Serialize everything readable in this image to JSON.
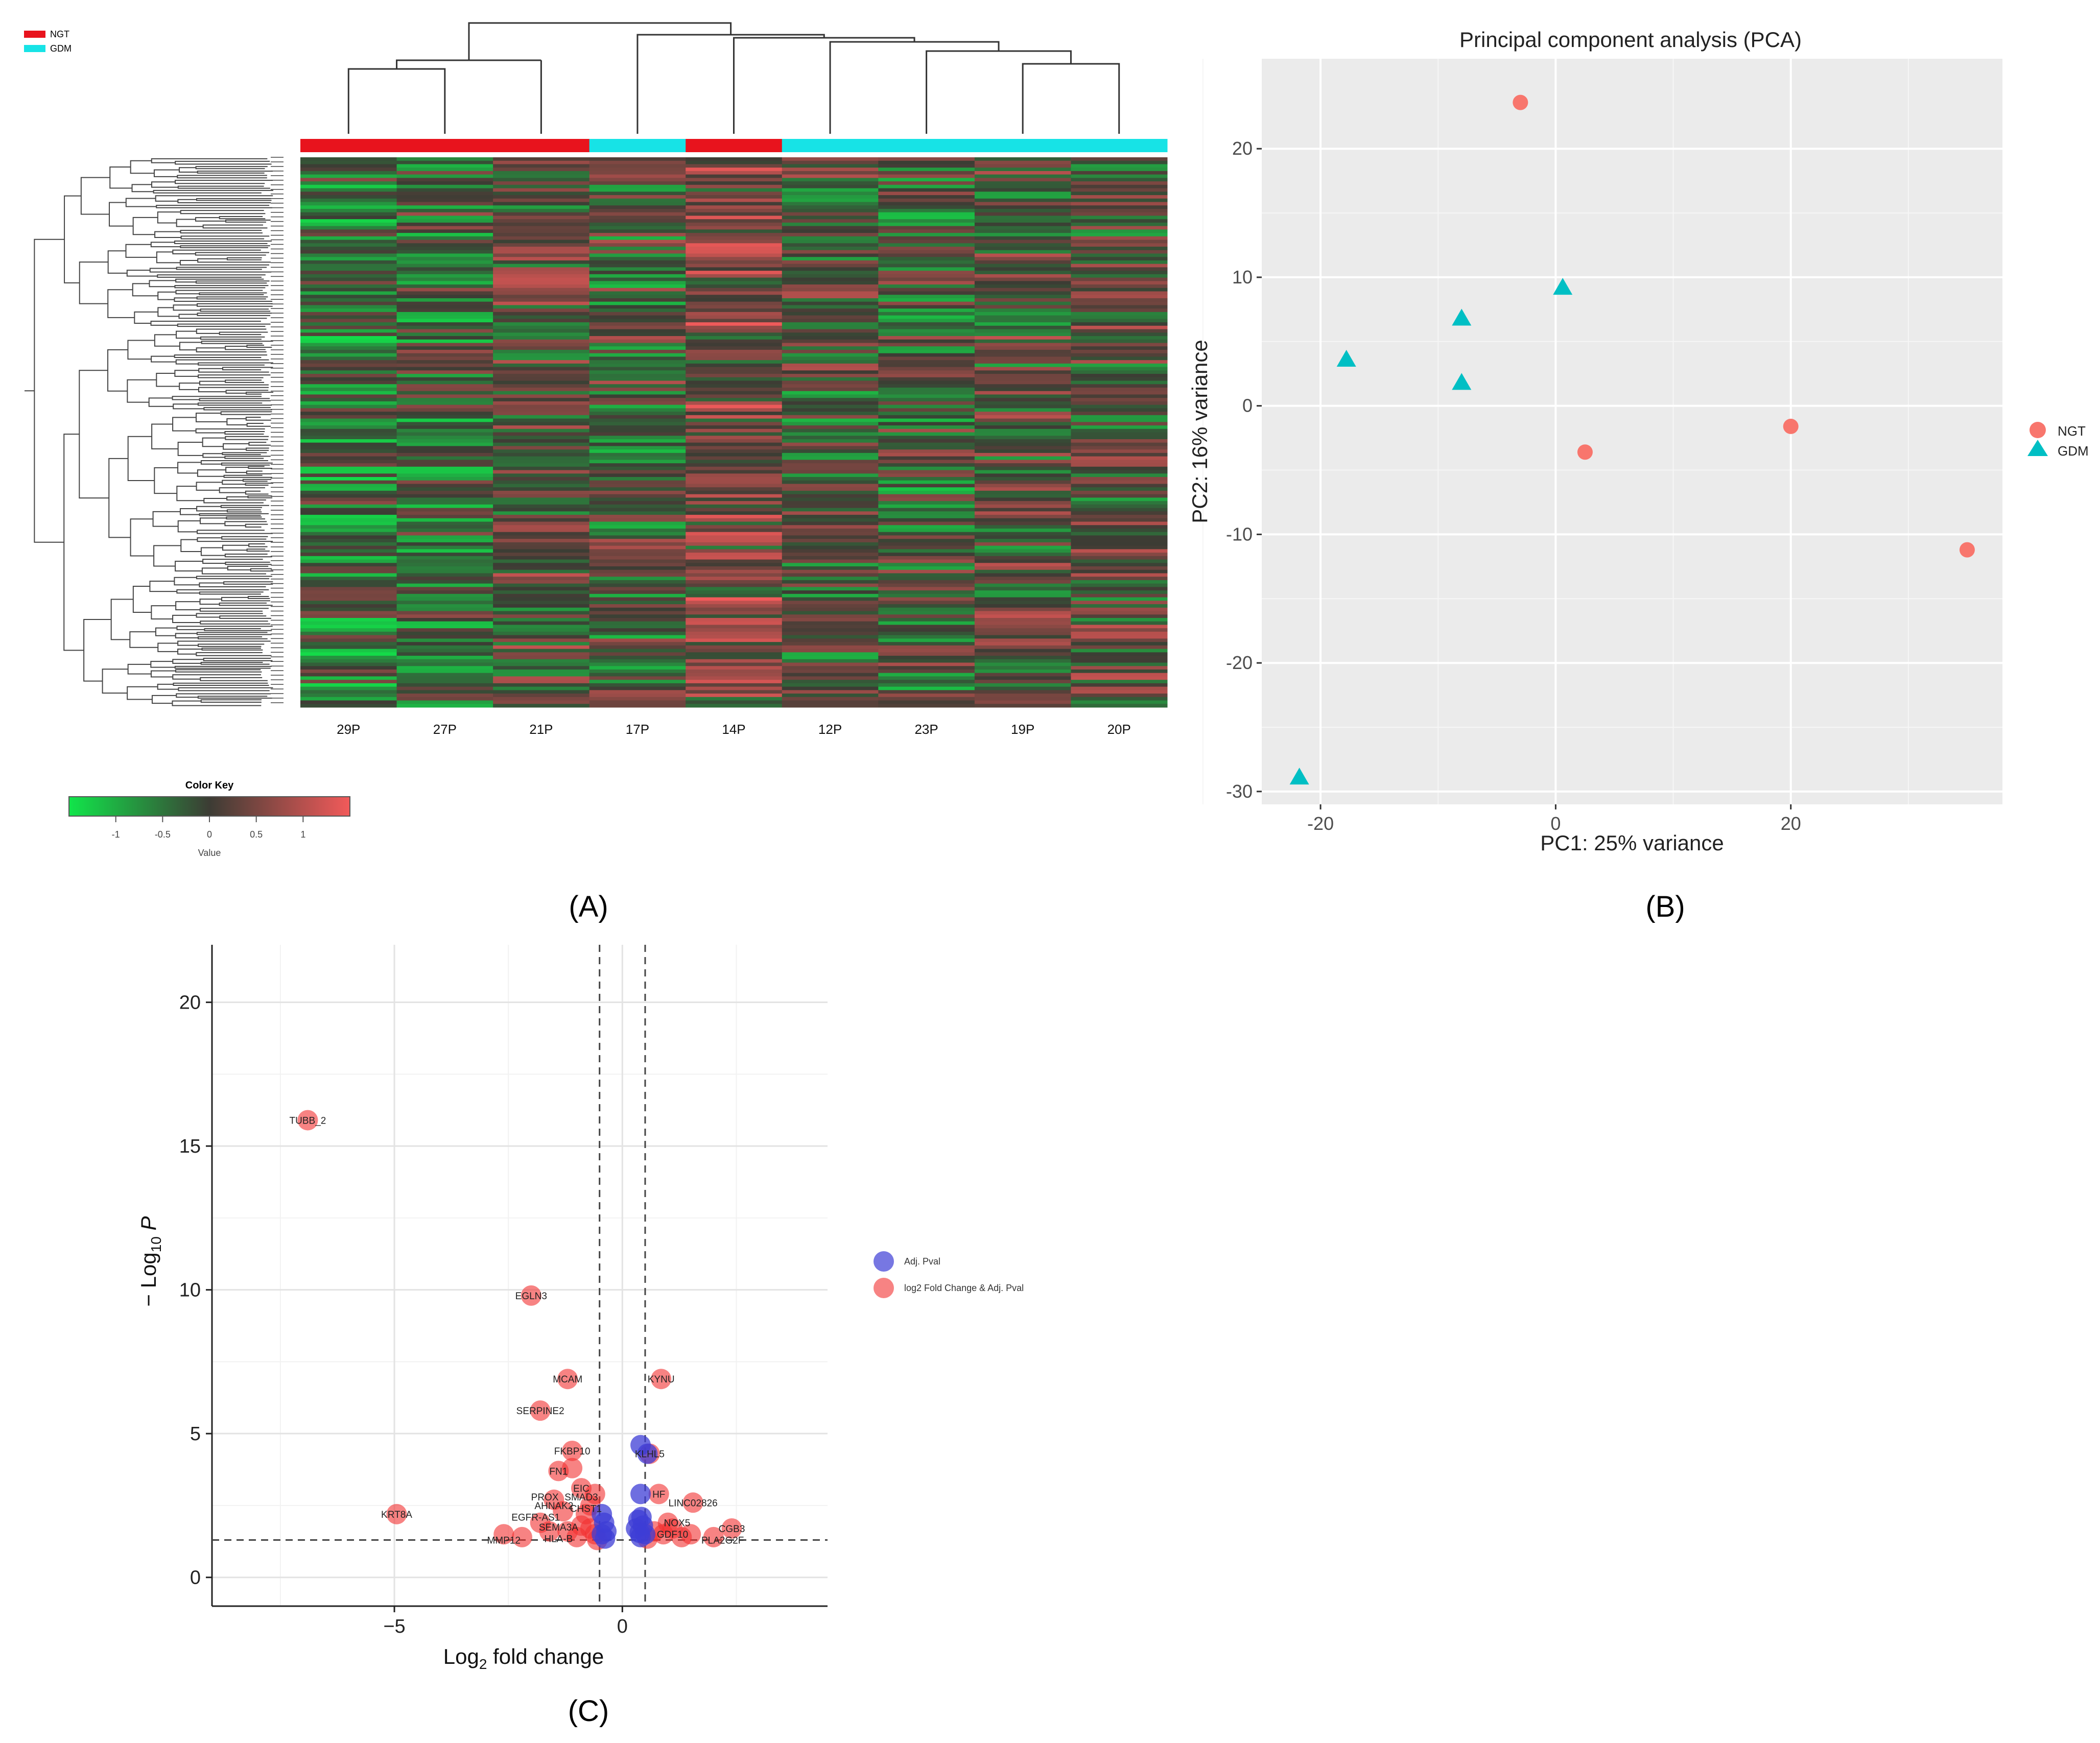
{
  "panel_labels": {
    "a": "(A)",
    "b": "(B)",
    "c": "(C)"
  },
  "colors": {
    "ngt": "#e8131d",
    "gdm": "#17e3e6",
    "pca_ngt": "#f8766d",
    "pca_gdm": "#00bfc4",
    "volcano_blue": "#3d3dd6",
    "volcano_red": "#f23030",
    "heat_green": "#11e54a",
    "heat_mid": "#3c3c34",
    "heat_red": "#f25a5a",
    "panel_bg": "#ebebeb"
  },
  "chart_data": [
    {
      "type": "heatmap",
      "title": "",
      "samples": [
        "29P",
        "27P",
        "21P",
        "17P",
        "14P",
        "12P",
        "23P",
        "19P",
        "20P"
      ],
      "sample_groups": [
        "NGT",
        "NGT",
        "NGT",
        "GDM",
        "NGT",
        "GDM",
        "GDM",
        "GDM",
        "GDM"
      ],
      "legend": [
        "NGT",
        "GDM"
      ],
      "color_key": {
        "title": "Color Key",
        "label": "Value",
        "ticks": [
          "-1",
          "-0.5",
          "0",
          "0.5",
          "1"
        ],
        "range": [
          -1.5,
          1.5
        ]
      },
      "column_dendrogram": "((29P,27P),21P),(17P,(14P,(12P,(23P,(19P,20P)))))",
      "row_dendrogram": true
    },
    {
      "type": "scatter",
      "title": "Principal component analysis (PCA)",
      "xlabel": "PC1: 25% variance",
      "ylabel": "PC2: 16% variance",
      "xlim": [
        -25,
        38
      ],
      "ylim": [
        -31,
        27
      ],
      "xticks": [
        -20,
        0,
        20
      ],
      "yticks": [
        -30,
        -20,
        -10,
        0,
        10,
        20
      ],
      "grid": true,
      "legend_position": "right",
      "series": [
        {
          "name": "NGT",
          "marker": "circle",
          "x": [
            -3,
            2.5,
            20,
            35
          ],
          "y": [
            23.6,
            -3.6,
            -1.6,
            -11.2
          ]
        },
        {
          "name": "GDM",
          "marker": "triangle",
          "x": [
            -8,
            -17.8,
            -8,
            0.6,
            -21.8
          ],
          "y": [
            6.8,
            3.6,
            1.8,
            9.2,
            -28.9
          ]
        }
      ]
    },
    {
      "type": "scatter",
      "title": "",
      "xlabel": "Log2 fold change",
      "ylabel": "-Log10 P",
      "xlim": [
        -9,
        4.5
      ],
      "ylim": [
        -1,
        22
      ],
      "xticks": [
        -5,
        0
      ],
      "yticks": [
        0,
        5,
        10,
        15,
        20
      ],
      "fc_cutoffs": [
        -0.5,
        0.5
      ],
      "p_cutoff": 1.3,
      "grid": true,
      "legend_position": "right",
      "series": [
        {
          "name": "Adj. Pval",
          "points": [
            [
              0.4,
              4.6
            ],
            [
              0.55,
              4.3
            ],
            [
              0.4,
              2.9
            ],
            [
              -0.45,
              2.2
            ],
            [
              -0.35,
              1.6
            ],
            [
              0.35,
              2.0
            ],
            [
              0.45,
              1.8
            ],
            [
              0.5,
              1.5
            ],
            [
              0.4,
              1.4
            ],
            [
              -0.4,
              1.9
            ],
            [
              -0.45,
              1.5
            ],
            [
              0.3,
              1.7
            ],
            [
              0.42,
              2.1
            ],
            [
              0.38,
              1.55
            ],
            [
              -0.38,
              1.35
            ]
          ]
        },
        {
          "name": "log2 Fold Change & Adj. Pval",
          "points": [
            [
              -6.9,
              15.9
            ],
            [
              -2.0,
              9.8
            ],
            [
              -1.2,
              6.9
            ],
            [
              0.85,
              6.9
            ],
            [
              -1.8,
              5.8
            ],
            [
              -1.1,
              4.4
            ],
            [
              0.6,
              4.3
            ],
            [
              -1.4,
              3.7
            ],
            [
              -1.1,
              3.8
            ],
            [
              -0.9,
              3.1
            ],
            [
              -0.6,
              2.9
            ],
            [
              0.8,
              2.9
            ],
            [
              -1.5,
              2.7
            ],
            [
              -0.7,
              2.5
            ],
            [
              1.55,
              2.6
            ],
            [
              -1.3,
              2.3
            ],
            [
              -0.8,
              2.2
            ],
            [
              -4.95,
              2.2
            ],
            [
              1.0,
              1.9
            ],
            [
              -1.8,
              1.9
            ],
            [
              -0.9,
              1.8
            ],
            [
              -1.2,
              1.6
            ],
            [
              2.4,
              1.7
            ],
            [
              -2.6,
              1.5
            ],
            [
              -1.6,
              1.6
            ],
            [
              -0.7,
              1.7
            ],
            [
              0.9,
              1.5
            ],
            [
              1.3,
              1.4
            ],
            [
              1.5,
              1.5
            ],
            [
              2.0,
              1.4
            ],
            [
              -0.6,
              1.5
            ],
            [
              -2.2,
              1.4
            ],
            [
              -1.0,
              1.4
            ],
            [
              0.7,
              1.6
            ],
            [
              1.1,
              1.7
            ],
            [
              -0.55,
              1.3
            ],
            [
              0.55,
              1.35
            ]
          ]
        }
      ],
      "annotations": [
        {
          "text": "TUBB_2",
          "x": -6.9,
          "y": 15.9
        },
        {
          "text": "EGLN3",
          "x": -2.0,
          "y": 9.8
        },
        {
          "text": "MCAM",
          "x": -1.2,
          "y": 6.9
        },
        {
          "text": "KYNU",
          "x": 0.85,
          "y": 6.9
        },
        {
          "text": "SERPINE2",
          "x": -1.8,
          "y": 5.8
        },
        {
          "text": "FKBP10",
          "x": -1.1,
          "y": 4.4
        },
        {
          "text": "KLHL5",
          "x": 0.6,
          "y": 4.3
        },
        {
          "text": "FN1",
          "x": -1.4,
          "y": 3.7
        },
        {
          "text": "EIC",
          "x": -0.9,
          "y": 3.1
        },
        {
          "text": "PROX",
          "x": -1.7,
          "y": 2.8
        },
        {
          "text": "SMAD3",
          "x": -0.9,
          "y": 2.8
        },
        {
          "text": "HF",
          "x": 0.8,
          "y": 2.9
        },
        {
          "text": "LINC02826",
          "x": 1.55,
          "y": 2.6
        },
        {
          "text": "AHNAK2",
          "x": -1.5,
          "y": 2.5
        },
        {
          "text": "CHST1",
          "x": -0.8,
          "y": 2.4
        },
        {
          "text": "KRT8A",
          "x": -4.95,
          "y": 2.2
        },
        {
          "text": "EGFR-AS1",
          "x": -1.9,
          "y": 2.1
        },
        {
          "text": "NOX5",
          "x": 1.2,
          "y": 1.9
        },
        {
          "text": "SEMA3A",
          "x": -1.4,
          "y": 1.75
        },
        {
          "text": "CGB3",
          "x": 2.4,
          "y": 1.7
        },
        {
          "text": "GDF10",
          "x": 1.1,
          "y": 1.5
        },
        {
          "text": "MMP12",
          "x": -2.6,
          "y": 1.3
        },
        {
          "text": "HLA-B",
          "x": -1.4,
          "y": 1.35
        },
        {
          "text": "PLA2G2F",
          "x": 2.2,
          "y": 1.3
        }
      ]
    }
  ]
}
